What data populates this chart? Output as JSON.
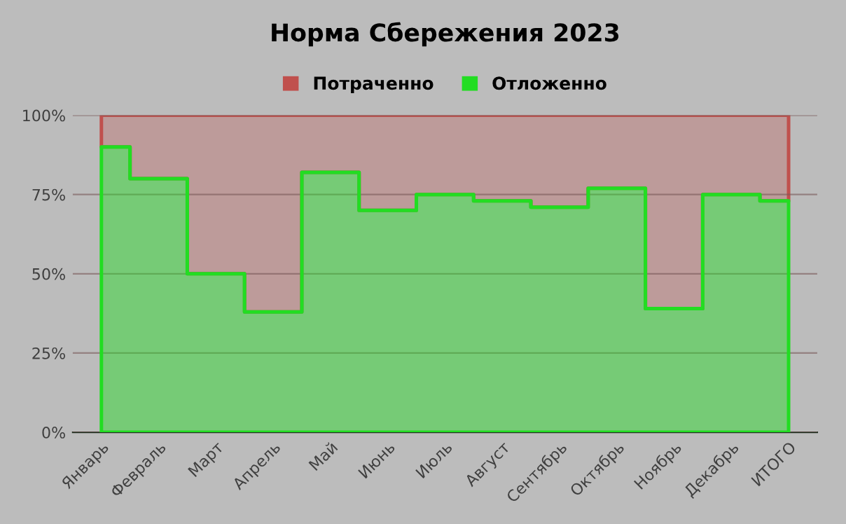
{
  "chart_data": {
    "type": "area",
    "title": "Норма Сбережения 2023",
    "stacked": true,
    "categories": [
      "Январь",
      "Февраль",
      "Март",
      "Апрель",
      "Май",
      "Июнь",
      "Июль",
      "Август",
      "Сентябрь",
      "Октябрь",
      "Ноябрь",
      "Декабрь",
      "ИТОГО"
    ],
    "series": [
      {
        "name": "Отложенно",
        "color": "#22dd22",
        "values": [
          90,
          80,
          50,
          38,
          82,
          70,
          75,
          73,
          71,
          77,
          39,
          75,
          73
        ]
      },
      {
        "name": "Потраченно",
        "color": "#c0504d",
        "values": [
          10,
          20,
          50,
          62,
          18,
          30,
          25,
          27,
          29,
          23,
          61,
          25,
          27
        ]
      }
    ],
    "ylim": [
      0,
      100
    ],
    "yticks": [
      {
        "value": 0,
        "label": "0%"
      },
      {
        "value": 25,
        "label": "25%"
      },
      {
        "value": 50,
        "label": "50%"
      },
      {
        "value": 75,
        "label": "75%"
      },
      {
        "value": 100,
        "label": "100%"
      }
    ],
    "grid": "y",
    "legend": "top"
  }
}
